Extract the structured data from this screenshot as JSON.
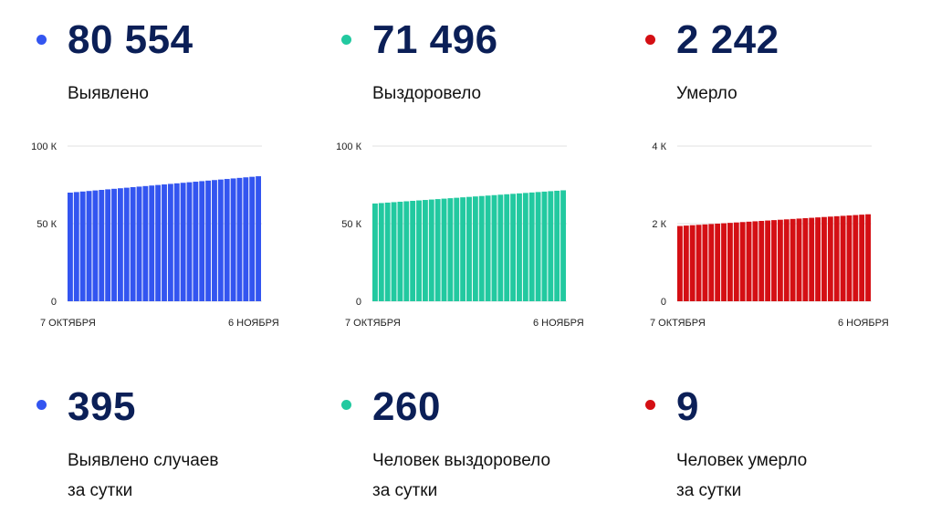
{
  "cards": [
    {
      "dot_color": "#3355f0",
      "total": "80 554",
      "label": "Выявлено"
    },
    {
      "dot_color": "#22c9a0",
      "total": "71 496",
      "label": "Выздоровело"
    },
    {
      "dot_color": "#d40f14",
      "total": "2 242",
      "label": "Умерло"
    }
  ],
  "daily": [
    {
      "dot_color": "#3355f0",
      "value": "395",
      "line1": "Выявлено случаев",
      "line2": "за сутки"
    },
    {
      "dot_color": "#22c9a0",
      "value": "260",
      "line1": "Человек выздоровело",
      "line2": "за сутки"
    },
    {
      "dot_color": "#d40f14",
      "value": "9",
      "line1": "Человек умерло",
      "line2": "за сутки"
    }
  ],
  "chart_data": [
    {
      "type": "bar",
      "color": "#3355f0",
      "ylim": [
        0,
        100000
      ],
      "yticks": [
        {
          "v": 0,
          "label": "0"
        },
        {
          "v": 50000,
          "label": "50 К"
        },
        {
          "v": 100000,
          "label": "100 К"
        }
      ],
      "x_start_label": "7 ОКТЯБРЯ",
      "x_end_label": "6 НОЯБРЯ",
      "bars": 31,
      "start_value": 70000,
      "end_value": 80554
    },
    {
      "type": "bar",
      "color": "#22c9a0",
      "ylim": [
        0,
        100000
      ],
      "yticks": [
        {
          "v": 0,
          "label": "0"
        },
        {
          "v": 50000,
          "label": "50 К"
        },
        {
          "v": 100000,
          "label": "100 К"
        }
      ],
      "x_start_label": "7 ОКТЯБРЯ",
      "x_end_label": "6 НОЯБРЯ",
      "bars": 31,
      "start_value": 63000,
      "end_value": 71496
    },
    {
      "type": "bar",
      "color": "#d40f14",
      "ylim": [
        0,
        4000
      ],
      "yticks": [
        {
          "v": 0,
          "label": "0"
        },
        {
          "v": 2000,
          "label": "2 К"
        },
        {
          "v": 4000,
          "label": "4 К"
        }
      ],
      "x_start_label": "7 ОКТЯБРЯ",
      "x_end_label": "6 НОЯБРЯ",
      "bars": 31,
      "start_value": 1940,
      "end_value": 2242
    }
  ]
}
